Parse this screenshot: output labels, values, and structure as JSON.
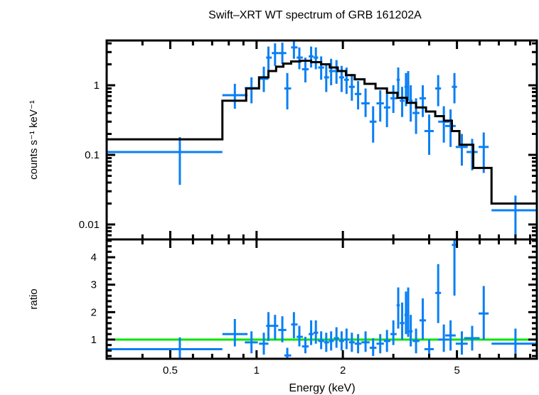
{
  "chart_data": [
    {
      "type": "scatter",
      "panel": "spectrum",
      "title": "Swift–XRT WT spectrum of GRB 161202A",
      "xlabel": "Energy (keV)",
      "ylabel": "counts s⁻¹ keV⁻¹",
      "xscale": "log",
      "yscale": "log",
      "xlim": [
        0.3,
        9.5
      ],
      "ylim": [
        0.0061,
        4.4
      ],
      "yticks": [
        {
          "v": 0.01,
          "label": "0.01"
        },
        {
          "v": 0.1,
          "label": "0.1"
        },
        {
          "v": 1,
          "label": "1"
        }
      ],
      "colors": {
        "data": "#0a7ff5",
        "model": "#000000"
      },
      "series": [
        {
          "name": "data",
          "points": [
            {
              "x": 0.54,
              "xlo": 0.3,
              "xhi": 0.76,
              "y": 0.11,
              "ylo": 0.037,
              "yhi": 0.18
            },
            {
              "x": 0.84,
              "xlo": 0.76,
              "xhi": 0.93,
              "y": 0.72,
              "ylo": 0.46,
              "yhi": 1.05
            },
            {
              "x": 0.96,
              "xlo": 0.91,
              "xhi": 1.01,
              "y": 0.91,
              "ylo": 0.55,
              "yhi": 1.3
            },
            {
              "x": 1.06,
              "xlo": 1.02,
              "xhi": 1.1,
              "y": 1.24,
              "ylo": 0.8,
              "yhi": 1.85
            },
            {
              "x": 1.1,
              "xlo": 1.08,
              "xhi": 1.13,
              "y": 2.5,
              "ylo": 1.6,
              "yhi": 3.6
            },
            {
              "x": 1.16,
              "xlo": 1.13,
              "xhi": 1.19,
              "y": 2.9,
              "ylo": 1.9,
              "yhi": 4.0
            },
            {
              "x": 1.23,
              "xlo": 1.19,
              "xhi": 1.27,
              "y": 2.9,
              "ylo": 2.0,
              "yhi": 4.1
            },
            {
              "x": 1.28,
              "xlo": 1.25,
              "xhi": 1.32,
              "y": 0.9,
              "ylo": 0.45,
              "yhi": 1.5
            },
            {
              "x": 1.35,
              "xlo": 1.32,
              "xhi": 1.39,
              "y": 3.5,
              "ylo": 2.4,
              "yhi": 4.4
            },
            {
              "x": 1.41,
              "xlo": 1.38,
              "xhi": 1.45,
              "y": 2.5,
              "ylo": 1.7,
              "yhi": 3.5
            },
            {
              "x": 1.48,
              "xlo": 1.44,
              "xhi": 1.52,
              "y": 1.7,
              "ylo": 1.1,
              "yhi": 2.5
            },
            {
              "x": 1.55,
              "xlo": 1.52,
              "xhi": 1.58,
              "y": 2.6,
              "ylo": 1.8,
              "yhi": 3.6
            },
            {
              "x": 1.61,
              "xlo": 1.58,
              "xhi": 1.64,
              "y": 2.5,
              "ylo": 1.7,
              "yhi": 3.5
            },
            {
              "x": 1.68,
              "xlo": 1.64,
              "xhi": 1.72,
              "y": 1.8,
              "ylo": 1.2,
              "yhi": 2.6
            },
            {
              "x": 1.75,
              "xlo": 1.72,
              "xhi": 1.79,
              "y": 1.3,
              "ylo": 0.8,
              "yhi": 2.0
            },
            {
              "x": 1.82,
              "xlo": 1.79,
              "xhi": 1.86,
              "y": 1.6,
              "ylo": 1.0,
              "yhi": 2.4
            },
            {
              "x": 1.9,
              "xlo": 1.86,
              "xhi": 1.94,
              "y": 1.6,
              "ylo": 1.05,
              "yhi": 2.3
            },
            {
              "x": 1.98,
              "xlo": 1.94,
              "xhi": 2.02,
              "y": 1.3,
              "ylo": 0.8,
              "yhi": 1.9
            },
            {
              "x": 2.06,
              "xlo": 2.02,
              "xhi": 2.1,
              "y": 1.2,
              "ylo": 0.75,
              "yhi": 1.8
            },
            {
              "x": 2.15,
              "xlo": 2.1,
              "xhi": 2.2,
              "y": 0.95,
              "ylo": 0.6,
              "yhi": 1.45
            },
            {
              "x": 2.26,
              "xlo": 2.2,
              "xhi": 2.32,
              "y": 0.75,
              "ylo": 0.45,
              "yhi": 1.15
            },
            {
              "x": 2.4,
              "xlo": 2.32,
              "xhi": 2.48,
              "y": 0.55,
              "ylo": 0.35,
              "yhi": 0.9
            },
            {
              "x": 2.55,
              "xlo": 2.48,
              "xhi": 2.62,
              "y": 0.3,
              "ylo": 0.15,
              "yhi": 0.5
            },
            {
              "x": 2.7,
              "xlo": 2.62,
              "xhi": 2.78,
              "y": 0.55,
              "ylo": 0.3,
              "yhi": 0.85
            },
            {
              "x": 2.85,
              "xlo": 2.78,
              "xhi": 2.93,
              "y": 0.48,
              "ylo": 0.25,
              "yhi": 0.75
            },
            {
              "x": 3.0,
              "xlo": 2.93,
              "xhi": 3.08,
              "y": 0.65,
              "ylo": 0.4,
              "yhi": 1.0
            },
            {
              "x": 3.12,
              "xlo": 3.08,
              "xhi": 3.16,
              "y": 1.2,
              "ylo": 0.7,
              "yhi": 1.8
            },
            {
              "x": 3.22,
              "xlo": 3.16,
              "xhi": 3.28,
              "y": 0.6,
              "ylo": 0.35,
              "yhi": 0.95
            },
            {
              "x": 3.32,
              "xlo": 3.28,
              "xhi": 3.36,
              "y": 0.95,
              "ylo": 0.5,
              "yhi": 1.5
            },
            {
              "x": 3.38,
              "xlo": 3.35,
              "xhi": 3.41,
              "y": 1.1,
              "ylo": 0.6,
              "yhi": 1.6
            },
            {
              "x": 3.45,
              "xlo": 3.41,
              "xhi": 3.5,
              "y": 0.6,
              "ylo": 0.3,
              "yhi": 1.0
            },
            {
              "x": 3.6,
              "xlo": 3.5,
              "xhi": 3.7,
              "y": 0.4,
              "ylo": 0.2,
              "yhi": 0.65
            },
            {
              "x": 3.8,
              "xlo": 3.7,
              "xhi": 3.9,
              "y": 0.65,
              "ylo": 0.35,
              "yhi": 1.0
            },
            {
              "x": 4.0,
              "xlo": 3.85,
              "xhi": 4.15,
              "y": 0.22,
              "ylo": 0.1,
              "yhi": 0.38
            },
            {
              "x": 4.3,
              "xlo": 4.2,
              "xhi": 4.4,
              "y": 0.9,
              "ylo": 0.5,
              "yhi": 1.4
            },
            {
              "x": 4.5,
              "xlo": 4.3,
              "xhi": 4.7,
              "y": 0.3,
              "ylo": 0.15,
              "yhi": 0.5
            },
            {
              "x": 4.75,
              "xlo": 4.55,
              "xhi": 4.95,
              "y": 0.26,
              "ylo": 0.13,
              "yhi": 0.45
            },
            {
              "x": 4.9,
              "xlo": 4.8,
              "xhi": 5.0,
              "y": 0.95,
              "ylo": 0.55,
              "yhi": 1.5
            },
            {
              "x": 5.2,
              "xlo": 4.95,
              "xhi": 5.45,
              "y": 0.13,
              "ylo": 0.07,
              "yhi": 0.2
            },
            {
              "x": 5.65,
              "xlo": 5.4,
              "xhi": 5.9,
              "y": 0.11,
              "ylo": 0.06,
              "yhi": 0.17
            },
            {
              "x": 6.2,
              "xlo": 5.95,
              "xhi": 6.45,
              "y": 0.13,
              "ylo": 0.055,
              "yhi": 0.21
            },
            {
              "x": 8.0,
              "xlo": 6.6,
              "xhi": 9.5,
              "y": 0.016,
              "ylo": 0.006,
              "yhi": 0.026
            }
          ]
        },
        {
          "name": "model",
          "step_edges": [
            0.3,
            0.76,
            0.92,
            1.02,
            1.1,
            1.17,
            1.24,
            1.32,
            1.42,
            1.55,
            1.68,
            1.8,
            1.92,
            2.05,
            2.2,
            2.38,
            2.6,
            2.85,
            3.1,
            3.35,
            3.6,
            3.9,
            4.2,
            4.5,
            4.8,
            5.1,
            5.7,
            6.6,
            9.5
          ],
          "step_values": [
            0.167,
            0.6,
            0.9,
            1.3,
            1.6,
            1.85,
            2.05,
            2.2,
            2.25,
            2.15,
            2.0,
            1.8,
            1.6,
            1.4,
            1.22,
            1.05,
            0.9,
            0.78,
            0.66,
            0.56,
            0.48,
            0.42,
            0.36,
            0.31,
            0.22,
            0.14,
            0.065,
            0.02
          ]
        }
      ]
    },
    {
      "type": "scatter",
      "panel": "ratio",
      "xlabel": "Energy (keV)",
      "ylabel": "ratio",
      "xscale": "log",
      "yscale": "linear",
      "xlim": [
        0.3,
        9.5
      ],
      "ylim": [
        0.3,
        4.65
      ],
      "xticks": [
        {
          "v": 0.5,
          "label": "0.5"
        },
        {
          "v": 1,
          "label": "1"
        },
        {
          "v": 2,
          "label": "2"
        },
        {
          "v": 5,
          "label": "5"
        }
      ],
      "yticks": [
        {
          "v": 1,
          "label": "1"
        },
        {
          "v": 2,
          "label": "2"
        },
        {
          "v": 3,
          "label": "3"
        },
        {
          "v": 4,
          "label": "4"
        }
      ],
      "reference_line": {
        "y": 1,
        "color": "#00e600"
      },
      "colors": {
        "data": "#0a7ff5"
      },
      "points": [
        {
          "x": 0.54,
          "xlo": 0.3,
          "xhi": 0.76,
          "y": 0.65,
          "ylo": 0.3,
          "yhi": 1.08
        },
        {
          "x": 0.84,
          "xlo": 0.76,
          "xhi": 0.93,
          "y": 1.2,
          "ylo": 0.75,
          "yhi": 1.75
        },
        {
          "x": 0.96,
          "xlo": 0.91,
          "xhi": 1.01,
          "y": 0.9,
          "ylo": 0.5,
          "yhi": 1.3
        },
        {
          "x": 1.06,
          "xlo": 1.02,
          "xhi": 1.1,
          "y": 0.85,
          "ylo": 0.45,
          "yhi": 1.25
        },
        {
          "x": 1.1,
          "xlo": 1.08,
          "xhi": 1.13,
          "y": 1.5,
          "ylo": 0.95,
          "yhi": 2.0
        },
        {
          "x": 1.16,
          "xlo": 1.13,
          "xhi": 1.19,
          "y": 1.5,
          "ylo": 1.0,
          "yhi": 1.9
        },
        {
          "x": 1.23,
          "xlo": 1.19,
          "xhi": 1.27,
          "y": 1.35,
          "ylo": 0.9,
          "yhi": 1.85
        },
        {
          "x": 1.28,
          "xlo": 1.25,
          "xhi": 1.32,
          "y": 0.42,
          "ylo": 0.2,
          "yhi": 0.7
        },
        {
          "x": 1.35,
          "xlo": 1.32,
          "xhi": 1.39,
          "y": 1.55,
          "ylo": 1.05,
          "yhi": 2.0
        },
        {
          "x": 1.41,
          "xlo": 1.38,
          "xhi": 1.45,
          "y": 1.1,
          "ylo": 0.75,
          "yhi": 1.5
        },
        {
          "x": 1.48,
          "xlo": 1.44,
          "xhi": 1.52,
          "y": 0.75,
          "ylo": 0.5,
          "yhi": 1.1
        },
        {
          "x": 1.55,
          "xlo": 1.52,
          "xhi": 1.58,
          "y": 1.2,
          "ylo": 0.8,
          "yhi": 1.7
        },
        {
          "x": 1.61,
          "xlo": 1.58,
          "xhi": 1.64,
          "y": 1.25,
          "ylo": 0.85,
          "yhi": 1.7
        },
        {
          "x": 1.68,
          "xlo": 1.64,
          "xhi": 1.72,
          "y": 0.95,
          "ylo": 0.65,
          "yhi": 1.3
        },
        {
          "x": 1.75,
          "xlo": 1.72,
          "xhi": 1.79,
          "y": 0.9,
          "ylo": 0.55,
          "yhi": 1.25
        },
        {
          "x": 1.82,
          "xlo": 1.79,
          "xhi": 1.86,
          "y": 0.95,
          "ylo": 0.6,
          "yhi": 1.3
        },
        {
          "x": 1.9,
          "xlo": 1.86,
          "xhi": 1.94,
          "y": 1.05,
          "ylo": 0.7,
          "yhi": 1.45
        },
        {
          "x": 1.98,
          "xlo": 1.94,
          "xhi": 2.02,
          "y": 0.95,
          "ylo": 0.6,
          "yhi": 1.3
        },
        {
          "x": 2.06,
          "xlo": 2.02,
          "xhi": 2.1,
          "y": 1.0,
          "ylo": 0.65,
          "yhi": 1.4
        },
        {
          "x": 2.15,
          "xlo": 2.1,
          "xhi": 2.2,
          "y": 0.9,
          "ylo": 0.55,
          "yhi": 1.25
        },
        {
          "x": 2.26,
          "xlo": 2.2,
          "xhi": 2.32,
          "y": 0.85,
          "ylo": 0.5,
          "yhi": 1.2
        },
        {
          "x": 2.4,
          "xlo": 2.32,
          "xhi": 2.48,
          "y": 0.9,
          "ylo": 0.55,
          "yhi": 1.3
        },
        {
          "x": 2.55,
          "xlo": 2.48,
          "xhi": 2.62,
          "y": 0.7,
          "ylo": 0.4,
          "yhi": 1.05
        },
        {
          "x": 2.7,
          "xlo": 2.62,
          "xhi": 2.78,
          "y": 0.85,
          "ylo": 0.5,
          "yhi": 1.2
        },
        {
          "x": 2.85,
          "xlo": 2.78,
          "xhi": 2.93,
          "y": 0.95,
          "ylo": 0.55,
          "yhi": 1.35
        },
        {
          "x": 3.0,
          "xlo": 2.93,
          "xhi": 3.08,
          "y": 1.2,
          "ylo": 0.8,
          "yhi": 1.7
        },
        {
          "x": 3.12,
          "xlo": 3.08,
          "xhi": 3.16,
          "y": 2.25,
          "ylo": 1.4,
          "yhi": 2.9
        },
        {
          "x": 3.22,
          "xlo": 3.16,
          "xhi": 3.28,
          "y": 1.6,
          "ylo": 1.0,
          "yhi": 2.35
        },
        {
          "x": 3.32,
          "xlo": 3.28,
          "xhi": 3.36,
          "y": 1.9,
          "ylo": 1.2,
          "yhi": 2.75
        },
        {
          "x": 3.38,
          "xlo": 3.35,
          "xhi": 3.41,
          "y": 2.0,
          "ylo": 1.1,
          "yhi": 2.9
        },
        {
          "x": 3.45,
          "xlo": 3.41,
          "xhi": 3.5,
          "y": 1.3,
          "ylo": 0.75,
          "yhi": 1.9
        },
        {
          "x": 3.6,
          "xlo": 3.5,
          "xhi": 3.7,
          "y": 0.95,
          "ylo": 0.5,
          "yhi": 1.4
        },
        {
          "x": 3.8,
          "xlo": 3.7,
          "xhi": 3.9,
          "y": 1.7,
          "ylo": 1.0,
          "yhi": 2.5
        },
        {
          "x": 4.0,
          "xlo": 3.85,
          "xhi": 4.15,
          "y": 0.65,
          "ylo": 0.3,
          "yhi": 1.0
        },
        {
          "x": 4.3,
          "xlo": 4.2,
          "xhi": 4.4,
          "y": 2.7,
          "ylo": 1.6,
          "yhi": 3.75
        },
        {
          "x": 4.5,
          "xlo": 4.3,
          "xhi": 4.7,
          "y": 1.0,
          "ylo": 0.55,
          "yhi": 1.55
        },
        {
          "x": 4.75,
          "xlo": 4.55,
          "xhi": 4.95,
          "y": 1.15,
          "ylo": 0.6,
          "yhi": 1.7
        },
        {
          "x": 4.9,
          "xlo": 4.8,
          "xhi": 5.0,
          "y": 4.45,
          "ylo": 2.6,
          "yhi": 4.65
        },
        {
          "x": 5.2,
          "xlo": 4.95,
          "xhi": 5.45,
          "y": 0.85,
          "ylo": 0.45,
          "yhi": 1.3
        },
        {
          "x": 5.65,
          "xlo": 5.3,
          "xhi": 6.0,
          "y": 1.05,
          "ylo": 0.6,
          "yhi": 1.5
        },
        {
          "x": 6.2,
          "xlo": 5.95,
          "xhi": 6.45,
          "y": 1.95,
          "ylo": 1.0,
          "yhi": 2.95
        },
        {
          "x": 8.0,
          "xlo": 6.6,
          "xhi": 9.5,
          "y": 0.85,
          "ylo": 0.3,
          "yhi": 1.4
        }
      ]
    }
  ]
}
